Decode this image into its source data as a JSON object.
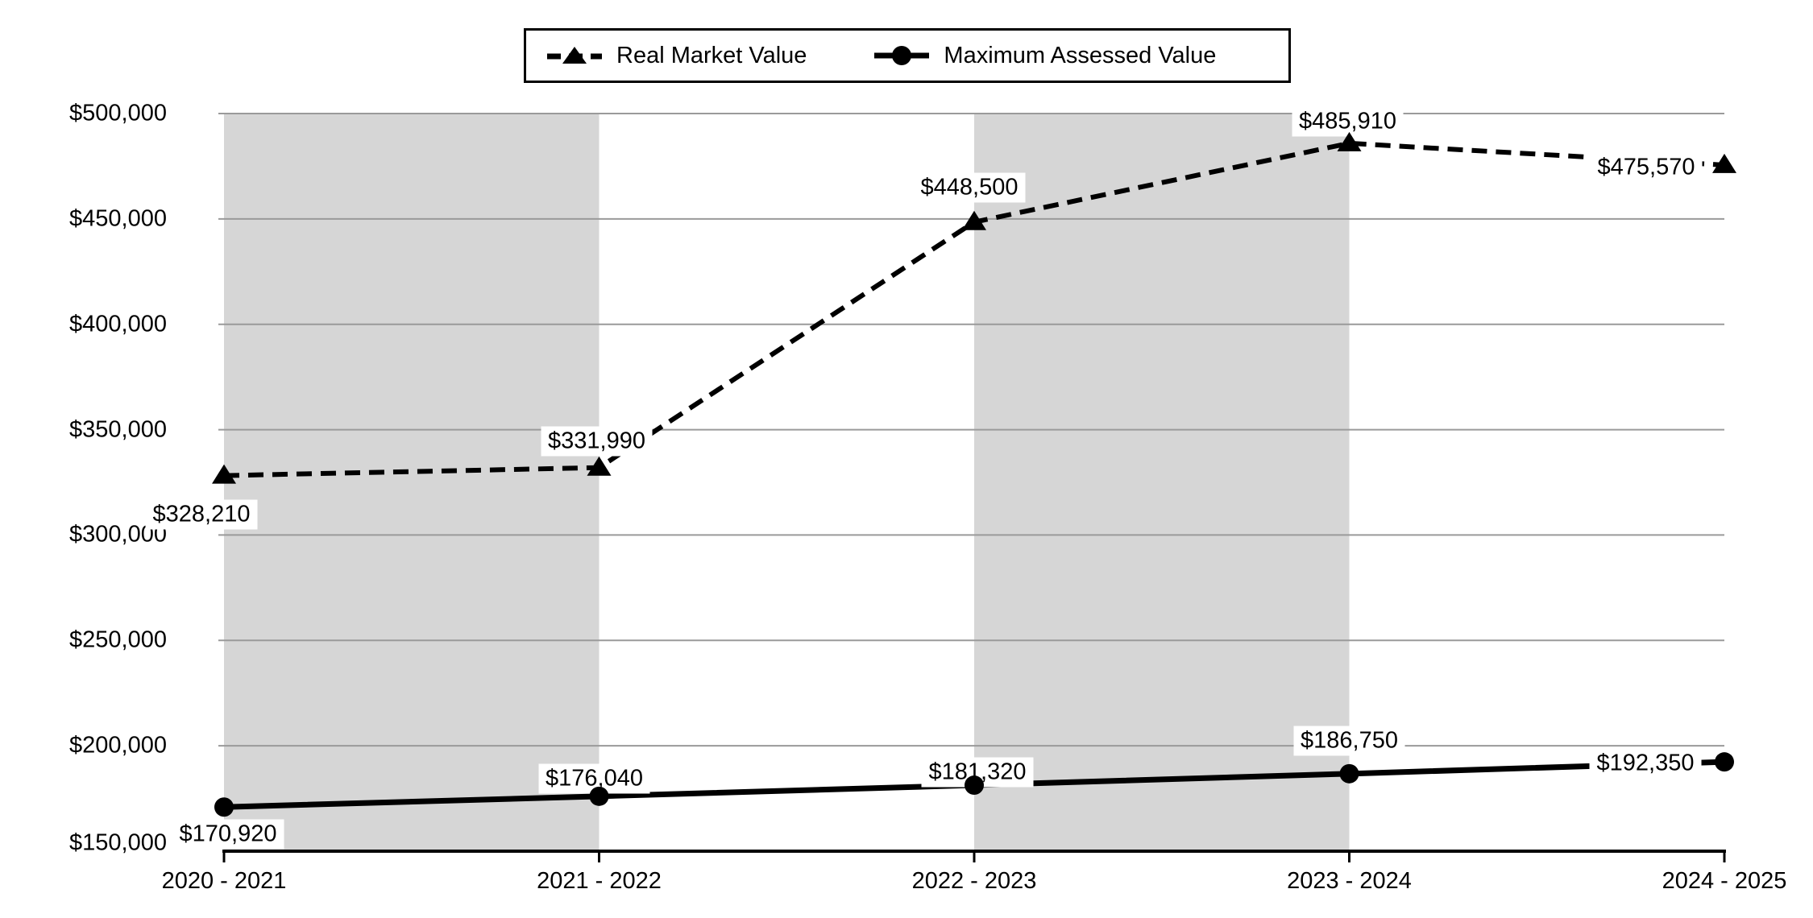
{
  "chart_data": {
    "type": "line",
    "title": "",
    "xlabel": "",
    "ylabel": "",
    "categories": [
      "2020 - 2021",
      "2021 - 2022",
      "2022 - 2023",
      "2023 - 2024",
      "2024 - 2025"
    ],
    "series": [
      {
        "name": "Real Market Value",
        "values": [
          328210,
          331990,
          448500,
          485910,
          475570
        ],
        "labels": [
          "$328,210",
          "$331,990",
          "$448,500",
          "$485,910",
          "$475,570"
        ],
        "line_style": "dashed",
        "marker": "triangle",
        "color": "#000000",
        "label_offsets": [
          [
            -28,
            48
          ],
          [
            -3,
            -33
          ],
          [
            -6,
            -43
          ],
          [
            -2,
            -27
          ],
          [
            -97,
            3
          ]
        ]
      },
      {
        "name": "Maximum Assessed Value",
        "values": [
          170920,
          176040,
          181320,
          186750,
          192350
        ],
        "labels": [
          "$170,920",
          "$176,040",
          "$181,320",
          "$186,750",
          "$192,350"
        ],
        "line_style": "solid",
        "marker": "circle",
        "color": "#000000",
        "label_offsets": [
          [
            5,
            34
          ],
          [
            -6,
            -22
          ],
          [
            4,
            -16
          ],
          [
            0,
            -41
          ],
          [
            -98,
            2
          ]
        ]
      }
    ],
    "ylim": [
      150000,
      500000
    ],
    "y_tick_step": 50000,
    "y_tick_labels": [
      "$150,000",
      "$200,000",
      "$250,000",
      "$300,000",
      "$350,000",
      "$400,000",
      "$450,000",
      "$500,000"
    ],
    "grid": true,
    "legend_position": "top-center",
    "shaded_band_category_spans": [
      [
        0,
        1
      ],
      [
        2,
        3
      ]
    ],
    "colors": {
      "band": "#d6d6d6",
      "gridline": "#9a9a9a",
      "axis": "#000000",
      "series": "#000000",
      "label_background": "#ffffff"
    }
  },
  "legend": {
    "items": [
      {
        "label": "Real Market Value"
      },
      {
        "label": "Maximum Assessed Value"
      }
    ]
  }
}
